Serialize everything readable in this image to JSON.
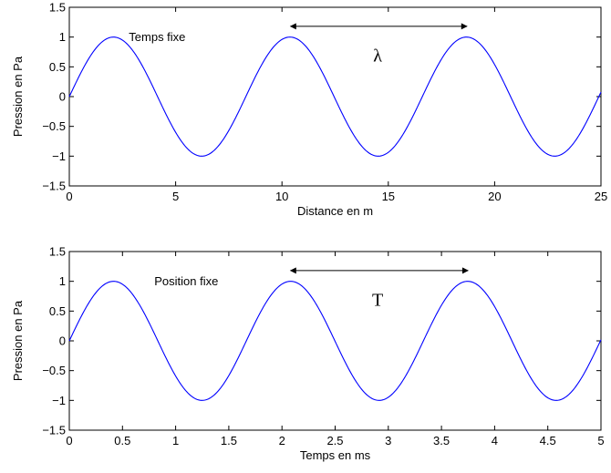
{
  "chart_data": [
    {
      "type": "line",
      "id": "top",
      "xlabel": "Distance en m",
      "ylabel": "Pression en Pa",
      "xlim": [
        0,
        25
      ],
      "ylim": [
        -1.5,
        1.5
      ],
      "xticks": [
        0,
        5,
        10,
        15,
        20,
        25
      ],
      "xtick_labels": [
        "0",
        "5",
        "10",
        "15",
        "20",
        "25"
      ],
      "yticks": [
        -1.5,
        -1,
        -0.5,
        0,
        0.5,
        1,
        1.5
      ],
      "ytick_labels": [
        "−1.5",
        "−1",
        "−0.5",
        "0",
        "0.5",
        "1",
        "1.5"
      ],
      "grid": false,
      "series": [
        {
          "function": "sine",
          "amplitude": 1,
          "period": 8.3,
          "x_start": 0,
          "x_end": 25,
          "color": "#0000ff"
        }
      ],
      "annotations": [
        {
          "text": "Temps fixe",
          "x": 2.8,
          "y": 1.0
        },
        {
          "text": "λ",
          "x": 14.5,
          "y": 0.7,
          "kind": "symbol"
        }
      ],
      "arrow": {
        "x1": 10.4,
        "x2": 18.7,
        "y": 1.18,
        "double_headed": true
      }
    },
    {
      "type": "line",
      "id": "bottom",
      "xlabel": "Temps en ms",
      "ylabel": "Pression en Pa",
      "xlim": [
        0,
        5
      ],
      "ylim": [
        -1.5,
        1.5
      ],
      "xticks": [
        0,
        0.5,
        1,
        1.5,
        2,
        2.5,
        3,
        3.5,
        4,
        4.5,
        5
      ],
      "xtick_labels": [
        "0",
        "0.5",
        "1",
        "1.5",
        "2",
        "2.5",
        "3",
        "3.5",
        "4",
        "4.5",
        "5"
      ],
      "yticks": [
        -1.5,
        -1,
        -0.5,
        0,
        0.5,
        1,
        1.5
      ],
      "ytick_labels": [
        "−1.5",
        "−1",
        "−0.5",
        "0",
        "0.5",
        "1",
        "1.5"
      ],
      "grid": false,
      "series": [
        {
          "function": "sine",
          "amplitude": 1,
          "period": 1.665,
          "x_start": 0,
          "x_end": 5,
          "color": "#0000ff"
        }
      ],
      "annotations": [
        {
          "text": "Position fixe",
          "x": 0.8,
          "y": 1.0
        },
        {
          "text": "T",
          "x": 2.9,
          "y": 0.7,
          "kind": "symbol"
        }
      ],
      "arrow": {
        "x1": 2.08,
        "x2": 3.75,
        "y": 1.18,
        "double_headed": true
      }
    }
  ]
}
